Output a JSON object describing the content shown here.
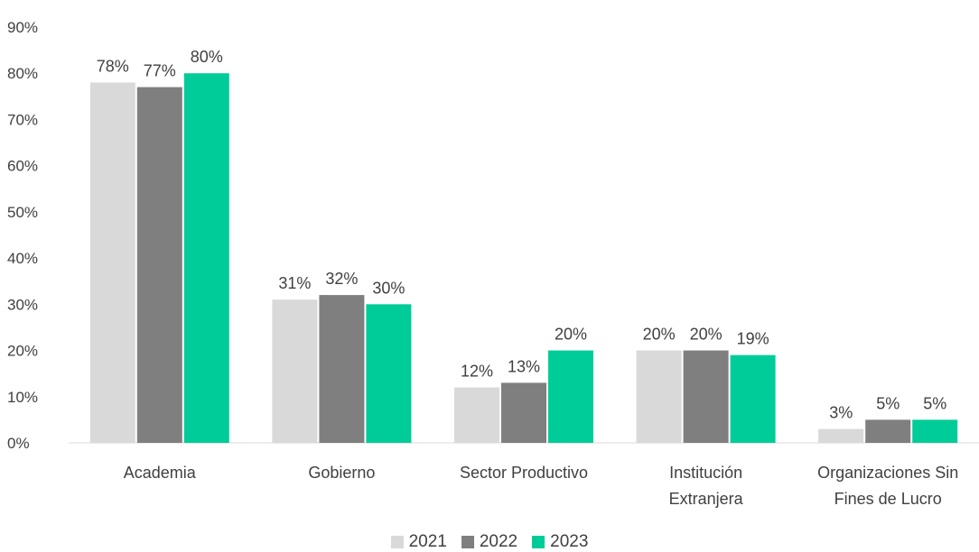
{
  "chart_data": {
    "type": "bar",
    "categories": [
      [
        "Academia"
      ],
      [
        "Gobierno"
      ],
      [
        "Sector Productivo"
      ],
      [
        "Institución",
        "Extranjera"
      ],
      [
        "Organizaciones Sin",
        "Fines de Lucro"
      ]
    ],
    "series": [
      {
        "name": "2021",
        "color": "#d9d9d9",
        "values": [
          78,
          31,
          12,
          20,
          3
        ]
      },
      {
        "name": "2022",
        "color": "#7f7f7f",
        "values": [
          77,
          32,
          13,
          20,
          5
        ]
      },
      {
        "name": "2023",
        "color": "#00cc99",
        "values": [
          80,
          30,
          20,
          19,
          5
        ]
      }
    ],
    "data_labels": [
      [
        "78%",
        "31%",
        "12%",
        "20%",
        "3%"
      ],
      [
        "77%",
        "32%",
        "13%",
        "20%",
        "5%"
      ],
      [
        "80%",
        "30%",
        "20%",
        "19%",
        "5%"
      ]
    ],
    "ylim": [
      0,
      90
    ],
    "yticks": [
      0,
      10,
      20,
      30,
      40,
      50,
      60,
      70,
      80,
      90
    ],
    "ytick_labels": [
      "0%",
      "10%",
      "20%",
      "30%",
      "40%",
      "50%",
      "60%",
      "70%",
      "80%",
      "90%"
    ],
    "grid": false,
    "legend_position": "bottom-center"
  }
}
